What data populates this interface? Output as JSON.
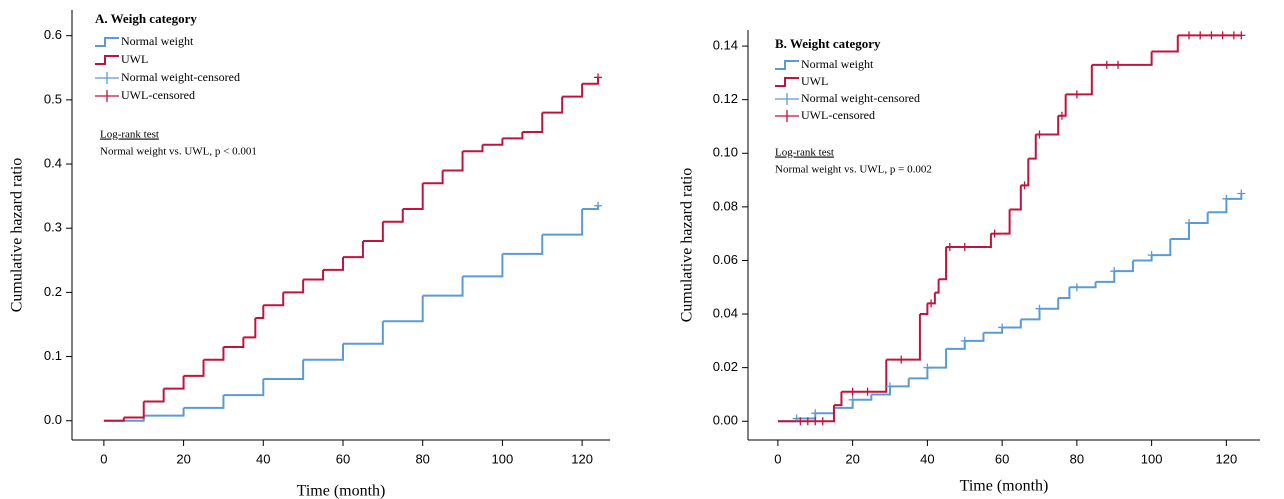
{
  "chart_data": [
    {
      "type": "step",
      "title": "A. Weigh category",
      "x_label": "Time (month)",
      "y_label": "Cumulative hazard ratio",
      "annotations": [
        "Log-rank test",
        "Normal weight vs. UWL, p < 0.001"
      ],
      "legend": "upper left",
      "xlim": [
        -8,
        127
      ],
      "xticks": [
        0,
        20,
        40,
        60,
        80,
        100,
        120
      ],
      "ylim": [
        -0.03,
        0.64
      ],
      "yticks": [
        {
          "value": 0,
          "label": "0.0"
        },
        0.1,
        0.2,
        0.3,
        0.4,
        0.5,
        0.6
      ],
      "series": [
        {
          "name": "Normal weight",
          "color": "#5b9bd5",
          "x": [
            0,
            5,
            10,
            20,
            30,
            40,
            50,
            60,
            70,
            80,
            90,
            100,
            110,
            120,
            124
          ],
          "values": [
            0,
            0,
            0.008,
            0.02,
            0.04,
            0.065,
            0.095,
            0.12,
            0.155,
            0.195,
            0.225,
            0.26,
            0.29,
            0.33,
            0.335
          ]
        },
        {
          "name": "UWL",
          "color": "#c0143c",
          "x": [
            0,
            3,
            5,
            10,
            15,
            20,
            25,
            30,
            35,
            38,
            40,
            45,
            50,
            55,
            60,
            65,
            70,
            75,
            80,
            85,
            90,
            95,
            100,
            105,
            110,
            115,
            120,
            124
          ],
          "values": [
            0,
            0,
            0.005,
            0.03,
            0.05,
            0.07,
            0.095,
            0.115,
            0.13,
            0.16,
            0.18,
            0.2,
            0.22,
            0.235,
            0.255,
            0.28,
            0.31,
            0.33,
            0.37,
            0.39,
            0.42,
            0.43,
            0.44,
            0.45,
            0.48,
            0.505,
            0.525,
            0.535
          ]
        },
        {
          "name": "Normal weight-censored",
          "color": "#5b9bd5",
          "marker": "+",
          "x": [
            124
          ],
          "values": [
            0.335
          ]
        },
        {
          "name": "UWL-censored",
          "color": "#c0143c",
          "marker": "+",
          "x": [
            124
          ],
          "values": [
            0.535
          ]
        }
      ]
    },
    {
      "type": "step",
      "title": "B. Weight category",
      "x_label": "Time (month)",
      "y_label": "Cumulative hazard ratio",
      "annotations": [
        "Log-rank test",
        "Normal weight vs. UWL, p = 0.002"
      ],
      "legend": "upper left",
      "xlim": [
        -8,
        129
      ],
      "xticks": [
        0,
        20,
        40,
        60,
        80,
        100,
        120
      ],
      "ylim": [
        -0.007,
        0.146
      ],
      "yticks": [
        {
          "value": 0,
          "label": "0.00"
        },
        0.02,
        0.04,
        0.06,
        0.08,
        {
          "value": 0.1,
          "label": "0.10"
        },
        0.12,
        0.14
      ],
      "series": [
        {
          "name": "Normal weight",
          "color": "#5b9bd5",
          "x": [
            0,
            5,
            10,
            15,
            20,
            25,
            30,
            35,
            40,
            45,
            50,
            55,
            60,
            65,
            70,
            75,
            78,
            85,
            90,
            95,
            100,
            105,
            110,
            115,
            120,
            124
          ],
          "values": [
            0,
            0.001,
            0.003,
            0.005,
            0.008,
            0.01,
            0.013,
            0.016,
            0.02,
            0.027,
            0.03,
            0.033,
            0.035,
            0.038,
            0.042,
            0.046,
            0.05,
            0.052,
            0.056,
            0.06,
            0.062,
            0.068,
            0.074,
            0.078,
            0.083,
            0.085
          ]
        },
        {
          "name": "UWL",
          "color": "#c0143c",
          "x": [
            0,
            13,
            15,
            17,
            28,
            29,
            37,
            38,
            40,
            42,
            43,
            45,
            56,
            57,
            60,
            62,
            65,
            67,
            69,
            74,
            75,
            77,
            82,
            84,
            99,
            100,
            106,
            107,
            124
          ],
          "values": [
            0,
            0,
            0.006,
            0.011,
            0.011,
            0.023,
            0.023,
            0.04,
            0.044,
            0.048,
            0.053,
            0.065,
            0.065,
            0.07,
            0.07,
            0.079,
            0.088,
            0.098,
            0.107,
            0.107,
            0.114,
            0.122,
            0.122,
            0.133,
            0.133,
            0.138,
            0.138,
            0.144,
            0.144
          ]
        },
        {
          "name": "Normal weight-censored",
          "color": "#5b9bd5",
          "marker": "+",
          "x": [
            5,
            10,
            20,
            30,
            40,
            50,
            60,
            70,
            80,
            90,
            100,
            110,
            120,
            124
          ],
          "values": [
            0.001,
            0.003,
            0.008,
            0.013,
            0.02,
            0.03,
            0.035,
            0.042,
            0.05,
            0.056,
            0.062,
            0.074,
            0.083,
            0.085
          ]
        },
        {
          "name": "UWL-censored",
          "color": "#c0143c",
          "marker": "+",
          "x": [
            6,
            8,
            10,
            12,
            20,
            24,
            33,
            41,
            46,
            50,
            58,
            66,
            70,
            76,
            80,
            88,
            91,
            110,
            113,
            116,
            119,
            122,
            124
          ],
          "values": [
            0,
            0,
            0,
            0,
            0.011,
            0.011,
            0.023,
            0.044,
            0.065,
            0.065,
            0.07,
            0.088,
            0.107,
            0.114,
            0.122,
            0.133,
            0.133,
            0.144,
            0.144,
            0.144,
            0.144,
            0.144,
            0.144
          ]
        }
      ]
    }
  ]
}
